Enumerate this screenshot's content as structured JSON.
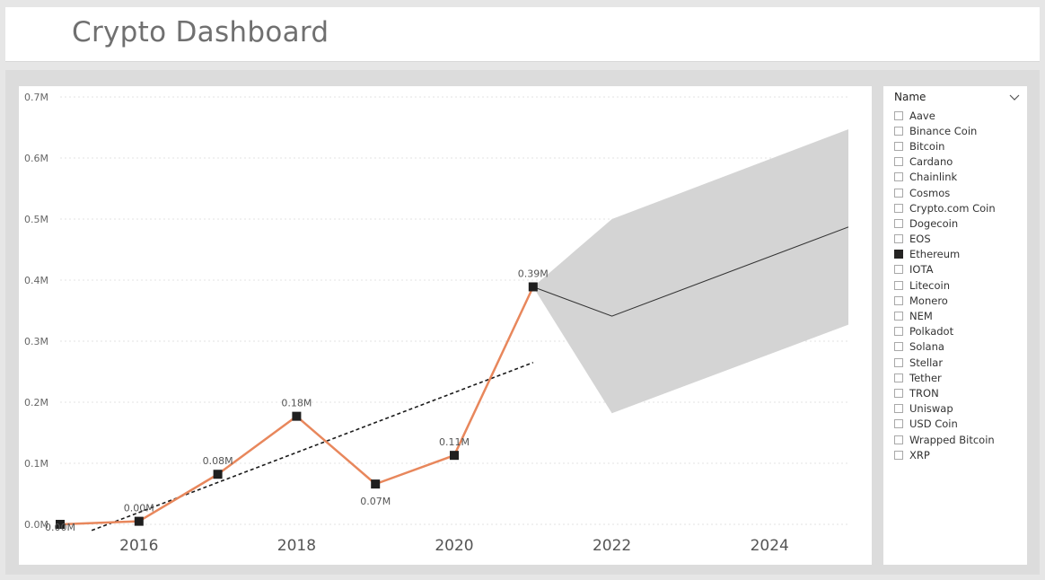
{
  "header": {
    "title": "Crypto Dashboard"
  },
  "slicer": {
    "title": "Name",
    "items": [
      {
        "label": "Aave",
        "checked": false
      },
      {
        "label": "Binance Coin",
        "checked": false
      },
      {
        "label": "Bitcoin",
        "checked": false
      },
      {
        "label": "Cardano",
        "checked": false
      },
      {
        "label": "Chainlink",
        "checked": false
      },
      {
        "label": "Cosmos",
        "checked": false
      },
      {
        "label": "Crypto.com Coin",
        "checked": false
      },
      {
        "label": "Dogecoin",
        "checked": false
      },
      {
        "label": "EOS",
        "checked": false
      },
      {
        "label": "Ethereum",
        "checked": true
      },
      {
        "label": "IOTA",
        "checked": false
      },
      {
        "label": "Litecoin",
        "checked": false
      },
      {
        "label": "Monero",
        "checked": false
      },
      {
        "label": "NEM",
        "checked": false
      },
      {
        "label": "Polkadot",
        "checked": false
      },
      {
        "label": "Solana",
        "checked": false
      },
      {
        "label": "Stellar",
        "checked": false
      },
      {
        "label": "Tether",
        "checked": false
      },
      {
        "label": "TRON",
        "checked": false
      },
      {
        "label": "Uniswap",
        "checked": false
      },
      {
        "label": "USD Coin",
        "checked": false
      },
      {
        "label": "Wrapped Bitcoin",
        "checked": false
      },
      {
        "label": "XRP",
        "checked": false
      }
    ]
  },
  "chart_data": {
    "type": "line",
    "xlim": [
      2015,
      2025
    ],
    "ylim": [
      0,
      0.7
    ],
    "y_ticks": [
      0,
      0.1,
      0.2,
      0.3,
      0.4,
      0.5,
      0.6,
      0.7
    ],
    "y_tick_labels": [
      "0.0M",
      "0.1M",
      "0.2M",
      "0.3M",
      "0.4M",
      "0.5M",
      "0.6M",
      "0.7M"
    ],
    "x_ticks": [
      2016,
      2018,
      2020,
      2022,
      2024
    ],
    "x_tick_labels": [
      "2016",
      "2018",
      "2020",
      "2022",
      "2024"
    ],
    "grid": true,
    "series": [
      {
        "name": "",
        "color": "#e8875c",
        "marker_color": "#1f1f1f",
        "x": [
          2015,
          2016,
          2017,
          2018,
          2019,
          2020,
          2021
        ],
        "values": [
          0.0,
          0.005,
          0.082,
          0.177,
          0.066,
          0.113,
          0.389
        ],
        "data_labels": [
          "0.00M",
          "0.00M",
          "0.08M",
          "0.18M",
          "0.07M",
          "0.11M",
          "0.39M"
        ]
      }
    ],
    "trend_line": {
      "style": "dashed",
      "color": "#1a1a1a",
      "x": [
        2015.4,
        2021
      ],
      "values": [
        -0.01,
        0.265
      ]
    },
    "forecast": {
      "color": "#333333",
      "band_color": "#d4d4d4",
      "x": [
        2021,
        2022,
        2025
      ],
      "values": [
        0.389,
        0.341,
        0.487
      ],
      "upper": [
        0.389,
        0.5,
        0.647
      ],
      "lower": [
        0.389,
        0.182,
        0.327
      ]
    }
  }
}
